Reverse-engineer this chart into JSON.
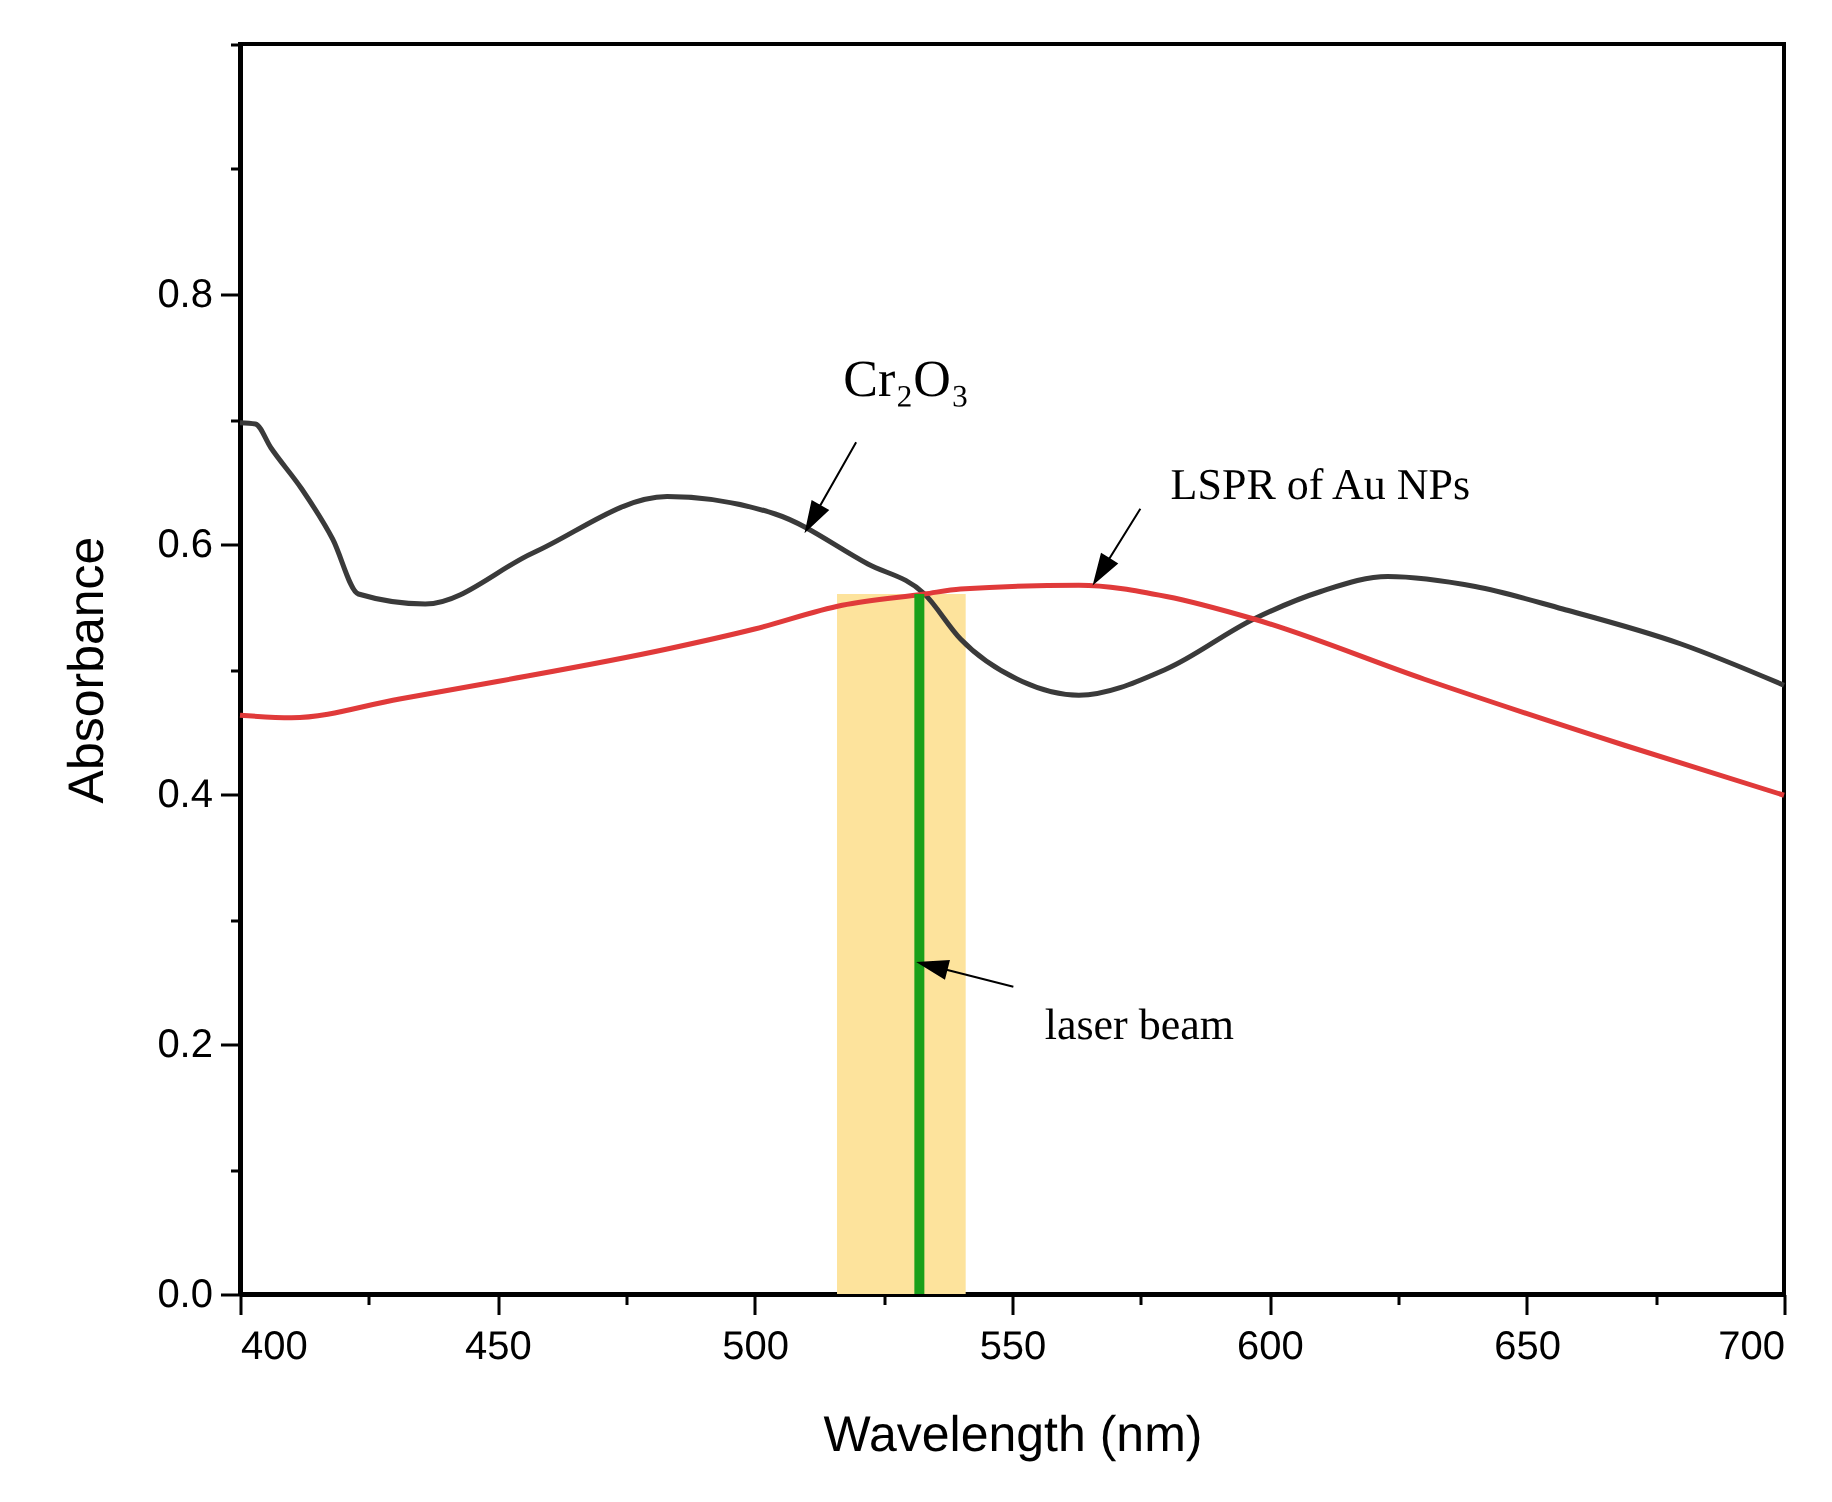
{
  "chart_data": {
    "type": "line",
    "xlabel": "Wavelength (nm)",
    "ylabel": "Absorbance",
    "xlim": [
      400,
      700
    ],
    "ylim": [
      0,
      1.0
    ],
    "xticks": [
      400,
      {
        "value": 425,
        "label": null
      },
      450,
      {
        "value": 475,
        "label": null
      },
      500,
      {
        "value": 525,
        "label": null
      },
      550,
      {
        "value": 575,
        "label": null
      },
      600,
      {
        "value": 625,
        "label": null
      },
      650,
      {
        "value": 675,
        "label": null
      },
      700
    ],
    "yticks": [
      {
        "value": 0,
        "label": "0.0"
      },
      {
        "value": 0.1,
        "label": null
      },
      {
        "value": 0.2,
        "label": "0.2"
      },
      {
        "value": 0.3,
        "label": null
      },
      {
        "value": 0.4,
        "label": "0.4"
      },
      {
        "value": 0.5,
        "label": null
      },
      {
        "value": 0.6,
        "label": "0.6"
      },
      {
        "value": 0.7,
        "label": null
      },
      {
        "value": 0.8,
        "label": "0.8"
      },
      {
        "value": 0.9,
        "label": null
      },
      {
        "value": 1.0,
        "label": null
      }
    ],
    "grid": false,
    "series": [
      {
        "type": "area",
        "color": "#fde39c",
        "x": [
          516,
          541
        ],
        "values": [
          0.56,
          0.56
        ]
      },
      {
        "color": "#3a3a3a",
        "x": [
          400,
          403,
          406,
          412,
          418,
          423,
          436,
          457,
          483,
          504,
          522,
          533,
          540,
          552,
          563,
          580,
          597,
          610,
          623,
          640,
          657,
          680,
          700
        ],
        "values": [
          0.697,
          0.696,
          0.677,
          0.644,
          0.604,
          0.56,
          0.552,
          0.593,
          0.638,
          0.624,
          0.584,
          0.56,
          0.524,
          0.49,
          0.479,
          0.5,
          0.54,
          0.562,
          0.574,
          0.566,
          0.548,
          0.52,
          0.487
        ]
      },
      {
        "color": "#e03a3a",
        "x": [
          400,
          410,
          431,
          450,
          483,
          500,
          517,
          533,
          540,
          563,
          580,
          597,
          630,
          669,
          700
        ],
        "values": [
          0.463,
          0.461,
          0.476,
          0.49,
          0.516,
          0.532,
          0.551,
          0.56,
          0.564,
          0.567,
          0.558,
          0.54,
          0.492,
          0.439,
          0.399
        ]
      },
      {
        "color": "#1aa01a",
        "x": [
          532,
          532
        ],
        "values": [
          0,
          0.56
        ]
      }
    ],
    "annotations": [
      {
        "text": "Cr₂O₃",
        "x": 510,
        "y": 0.611
      },
      {
        "text": "LSPR of Au NPs",
        "x": 566,
        "y": 0.569
      },
      {
        "text": "laser beam",
        "x": 532,
        "y": 0.265
      }
    ]
  }
}
